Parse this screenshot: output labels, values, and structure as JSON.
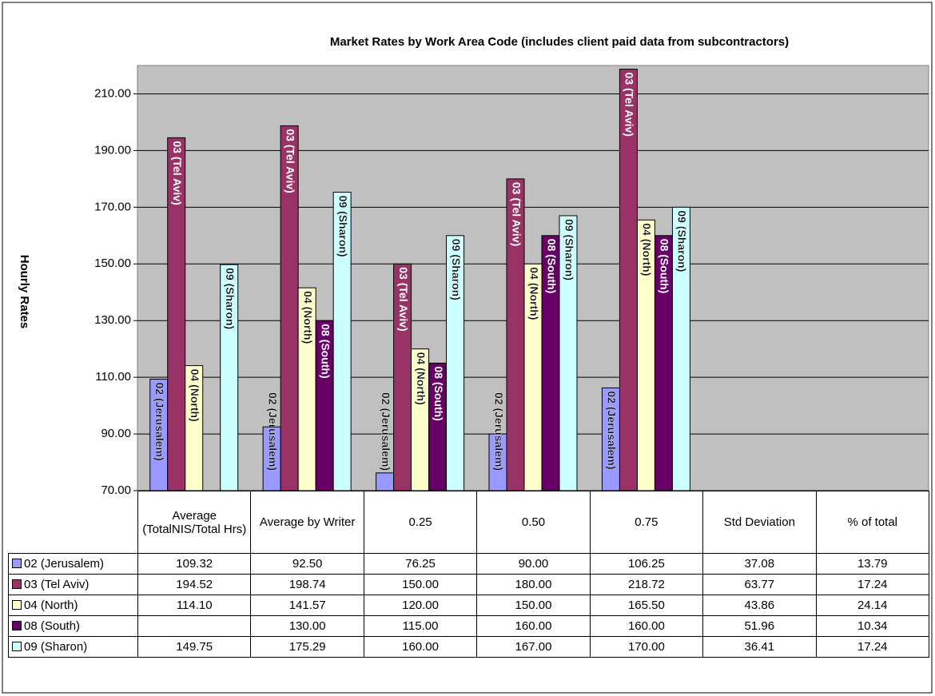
{
  "chart_data": {
    "type": "bar",
    "title": "Market Rates by Work Area Code (includes client paid data from subcontractors)",
    "y_label": "Hourly Rates",
    "categories": [
      "Average (TotalNIS/Total Hrs)",
      "Average by Writer",
      "0.25",
      "0.50",
      "0.75",
      "Std Deviation",
      "% of total"
    ],
    "series": [
      {
        "name": "02 (Jerusalem)",
        "color": "#9999ff",
        "values": [
          109.32,
          92.5,
          76.25,
          90,
          106.25,
          37.08,
          13.79
        ],
        "value_labels": [
          "109.32",
          "92.50",
          "76.25",
          "90.00",
          "106.25",
          "37.08",
          "13.79"
        ]
      },
      {
        "name": "03 (Tel Aviv)",
        "color": "#993366",
        "values": [
          194.52,
          198.74,
          150,
          180,
          218.72,
          63.77,
          17.24
        ],
        "value_labels": [
          "194.52",
          "198.74",
          "150.00",
          "180.00",
          "218.72",
          "63.77",
          "17.24"
        ]
      },
      {
        "name": "04 (North)",
        "color": "#ffffcc",
        "values": [
          114.1,
          141.57,
          120,
          150,
          165.5,
          43.86,
          24.14
        ],
        "value_labels": [
          "114.10",
          "141.57",
          "120.00",
          "150.00",
          "165.50",
          "43.86",
          "24.14"
        ]
      },
      {
        "name": "08 (South)",
        "color": "#660066",
        "values": [
          null,
          130,
          115,
          160,
          160,
          51.96,
          10.34
        ],
        "value_labels": [
          null,
          "130.00",
          "115.00",
          "160.00",
          "160.00",
          "51.96",
          "10.34"
        ]
      },
      {
        "name": "09 (Sharon)",
        "color": "#ccffff",
        "values": [
          149.75,
          175.29,
          160,
          167,
          170,
          36.41,
          17.24
        ],
        "value_labels": [
          "149.75",
          "175.29",
          "160.00",
          "167.00",
          "170.00",
          "36.41",
          "17.24"
        ]
      }
    ],
    "ylim": [
      70,
      220
    ],
    "yticks": [
      {
        "value": 70,
        "label": "70.00"
      },
      {
        "value": 90,
        "label": "90.00"
      },
      {
        "value": 110,
        "label": "110.00"
      },
      {
        "value": 130,
        "label": "130.00"
      },
      {
        "value": 150,
        "label": "150.00"
      },
      {
        "value": 170,
        "label": "170.00"
      },
      {
        "value": 190,
        "label": "190.00"
      },
      {
        "value": 210,
        "label": "210.00"
      }
    ],
    "grid": true,
    "plot_background": "#c0c0c0"
  }
}
